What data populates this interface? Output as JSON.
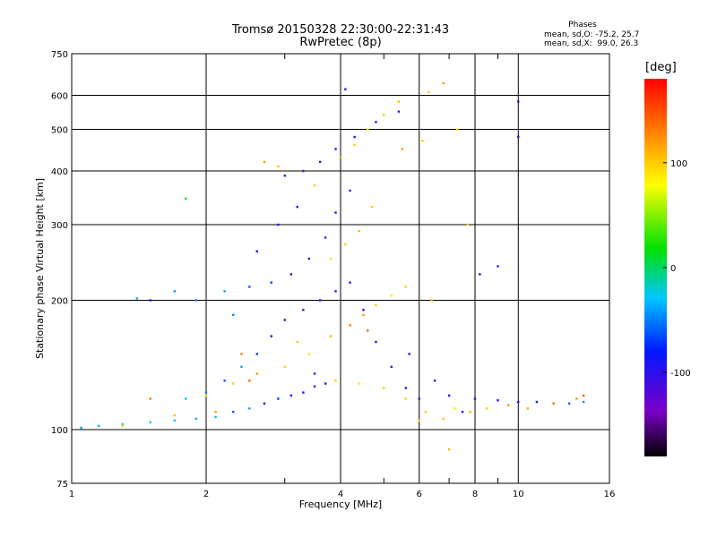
{
  "figure": {
    "title": "Tromsø 20150328 22:30:00-22:31:43",
    "subtitle": "RwPretec (8p)",
    "phases_header": "Phases",
    "phases_o": "mean, sd,O: -75.2, 25.7",
    "phases_x": "mean, sd,X:  99.0, 26.3",
    "colorbar_unit": "[deg]"
  },
  "chart_data": {
    "type": "scatter",
    "title": "Tromsø 20150328 22:30:00-22:31:43",
    "subtitle": "RwPretec (8p)",
    "xlabel": "Frequency [MHz]",
    "ylabel": "Stationary phase Virtual Height [km]",
    "x_scale": "log",
    "y_scale": "log",
    "xlim": [
      1,
      16
    ],
    "ylim": [
      75,
      750
    ],
    "x_ticks": [
      1,
      2,
      4,
      6,
      8,
      10,
      16
    ],
    "y_ticks": [
      75,
      100,
      200,
      300,
      400,
      500,
      600,
      750
    ],
    "grid": true,
    "colorbar": {
      "label": "[deg]",
      "range": [
        -180,
        180
      ],
      "ticks": [
        100,
        0,
        -100
      ],
      "colors": [
        "#000000",
        "#7a00c8",
        "#0018ff",
        "#00c8ff",
        "#00e000",
        "#ffff00",
        "#ff8000",
        "#ff0000"
      ]
    },
    "series": [
      {
        "name": "O",
        "points": [
          [
            1.05,
            101,
            -40
          ],
          [
            1.15,
            102,
            -35
          ],
          [
            1.3,
            103,
            -30
          ],
          [
            1.5,
            104,
            -25
          ],
          [
            1.7,
            105,
            -30
          ],
          [
            1.9,
            106,
            -40
          ],
          [
            2.1,
            107,
            -35
          ],
          [
            2.3,
            110,
            -60
          ],
          [
            2.5,
            112,
            -40
          ],
          [
            2.7,
            115,
            -80
          ],
          [
            2.9,
            118,
            -70
          ],
          [
            3.1,
            120,
            -100
          ],
          [
            3.3,
            122,
            -110
          ],
          [
            3.5,
            126,
            -120
          ],
          [
            3.7,
            128,
            -100
          ],
          [
            1.8,
            118,
            -30
          ],
          [
            2.0,
            122,
            -50
          ],
          [
            2.2,
            130,
            -60
          ],
          [
            2.4,
            140,
            -40
          ],
          [
            2.6,
            150,
            -70
          ],
          [
            2.8,
            165,
            -90
          ],
          [
            3.0,
            180,
            -110
          ],
          [
            3.3,
            190,
            -120
          ],
          [
            3.6,
            200,
            -100
          ],
          [
            3.9,
            210,
            -110
          ],
          [
            4.2,
            220,
            -120
          ],
          [
            4.5,
            190,
            -105
          ],
          [
            4.8,
            160,
            -110
          ],
          [
            5.2,
            140,
            -115
          ],
          [
            5.6,
            125,
            -100
          ],
          [
            6.0,
            118,
            -110
          ],
          [
            2.2,
            210,
            -40
          ],
          [
            2.5,
            215,
            -60
          ],
          [
            2.8,
            220,
            -70
          ],
          [
            3.1,
            230,
            -90
          ],
          [
            3.4,
            250,
            -110
          ],
          [
            3.7,
            280,
            -120
          ],
          [
            3.9,
            320,
            -100
          ],
          [
            4.2,
            360,
            -110
          ],
          [
            3.0,
            390,
            -115
          ],
          [
            3.3,
            400,
            -120
          ],
          [
            3.6,
            420,
            -110
          ],
          [
            3.9,
            450,
            -100
          ],
          [
            4.3,
            480,
            -90
          ],
          [
            4.8,
            520,
            -110
          ],
          [
            5.4,
            550,
            -100
          ],
          [
            1.9,
            200,
            -50
          ],
          [
            1.7,
            210,
            -45
          ],
          [
            2.6,
            260,
            -80
          ],
          [
            2.9,
            300,
            -95
          ],
          [
            3.2,
            330,
            -100
          ],
          [
            7.0,
            120,
            -100
          ],
          [
            8.0,
            118,
            -110
          ],
          [
            9.0,
            117,
            -100
          ],
          [
            10.0,
            116,
            -90
          ],
          [
            11.0,
            116,
            -80
          ],
          [
            12.0,
            115,
            -70
          ],
          [
            13.0,
            115,
            -60
          ],
          [
            14.0,
            116,
            -50
          ],
          [
            10.0,
            580,
            -100
          ],
          [
            10.0,
            480,
            -110
          ],
          [
            4.1,
            620,
            -110
          ],
          [
            8.2,
            230,
            -100
          ],
          [
            9.0,
            240,
            -110
          ],
          [
            5.7,
            150,
            -100
          ],
          [
            3.5,
            135,
            -120
          ],
          [
            6.5,
            130,
            -110
          ],
          [
            7.5,
            110,
            -100
          ],
          [
            1.4,
            202,
            -40
          ],
          [
            1.5,
            200,
            -100
          ],
          [
            2.3,
            185,
            -50
          ]
        ]
      },
      {
        "name": "X",
        "points": [
          [
            1.3,
            102,
            100
          ],
          [
            1.7,
            108,
            110
          ],
          [
            2.0,
            120,
            90
          ],
          [
            2.3,
            128,
            100
          ],
          [
            2.6,
            135,
            120
          ],
          [
            3.0,
            140,
            100
          ],
          [
            3.4,
            150,
            90
          ],
          [
            3.8,
            165,
            110
          ],
          [
            4.2,
            175,
            130
          ],
          [
            4.5,
            185,
            120
          ],
          [
            4.8,
            195,
            100
          ],
          [
            5.2,
            205,
            90
          ],
          [
            5.6,
            215,
            100
          ],
          [
            3.8,
            250,
            90
          ],
          [
            4.1,
            270,
            100
          ],
          [
            4.4,
            290,
            110
          ],
          [
            4.7,
            330,
            100
          ],
          [
            4.0,
            430,
            110
          ],
          [
            4.3,
            460,
            100
          ],
          [
            4.6,
            500,
            90
          ],
          [
            5.0,
            540,
            100
          ],
          [
            5.4,
            580,
            110
          ],
          [
            6.3,
            610,
            100
          ],
          [
            6.8,
            640,
            120
          ],
          [
            3.9,
            130,
            100
          ],
          [
            4.4,
            128,
            90
          ],
          [
            5.0,
            125,
            100
          ],
          [
            5.6,
            118,
            95
          ],
          [
            6.2,
            110,
            100
          ],
          [
            6.8,
            106,
            100
          ],
          [
            7.2,
            112,
            90
          ],
          [
            7.8,
            110,
            110
          ],
          [
            8.5,
            112,
            100
          ],
          [
            9.5,
            114,
            120
          ],
          [
            10.5,
            112,
            110
          ],
          [
            12.0,
            115,
            130
          ],
          [
            13.5,
            118,
            120
          ],
          [
            14.0,
            120,
            140
          ],
          [
            2.7,
            420,
            120
          ],
          [
            2.9,
            410,
            110
          ],
          [
            3.5,
            370,
            100
          ],
          [
            6.1,
            470,
            100
          ],
          [
            7.3,
            500,
            90
          ],
          [
            7.7,
            300,
            100
          ],
          [
            7.0,
            90,
            110
          ],
          [
            6.0,
            105,
            95
          ],
          [
            1.8,
            345,
            20
          ],
          [
            2.5,
            130,
            140
          ],
          [
            3.2,
            160,
            100
          ],
          [
            4.6,
            170,
            140
          ],
          [
            1.5,
            118,
            130
          ],
          [
            2.1,
            110,
            120
          ],
          [
            2.4,
            150,
            130
          ],
          [
            5.5,
            450,
            120
          ],
          [
            6.4,
            200,
            110
          ]
        ]
      }
    ]
  }
}
